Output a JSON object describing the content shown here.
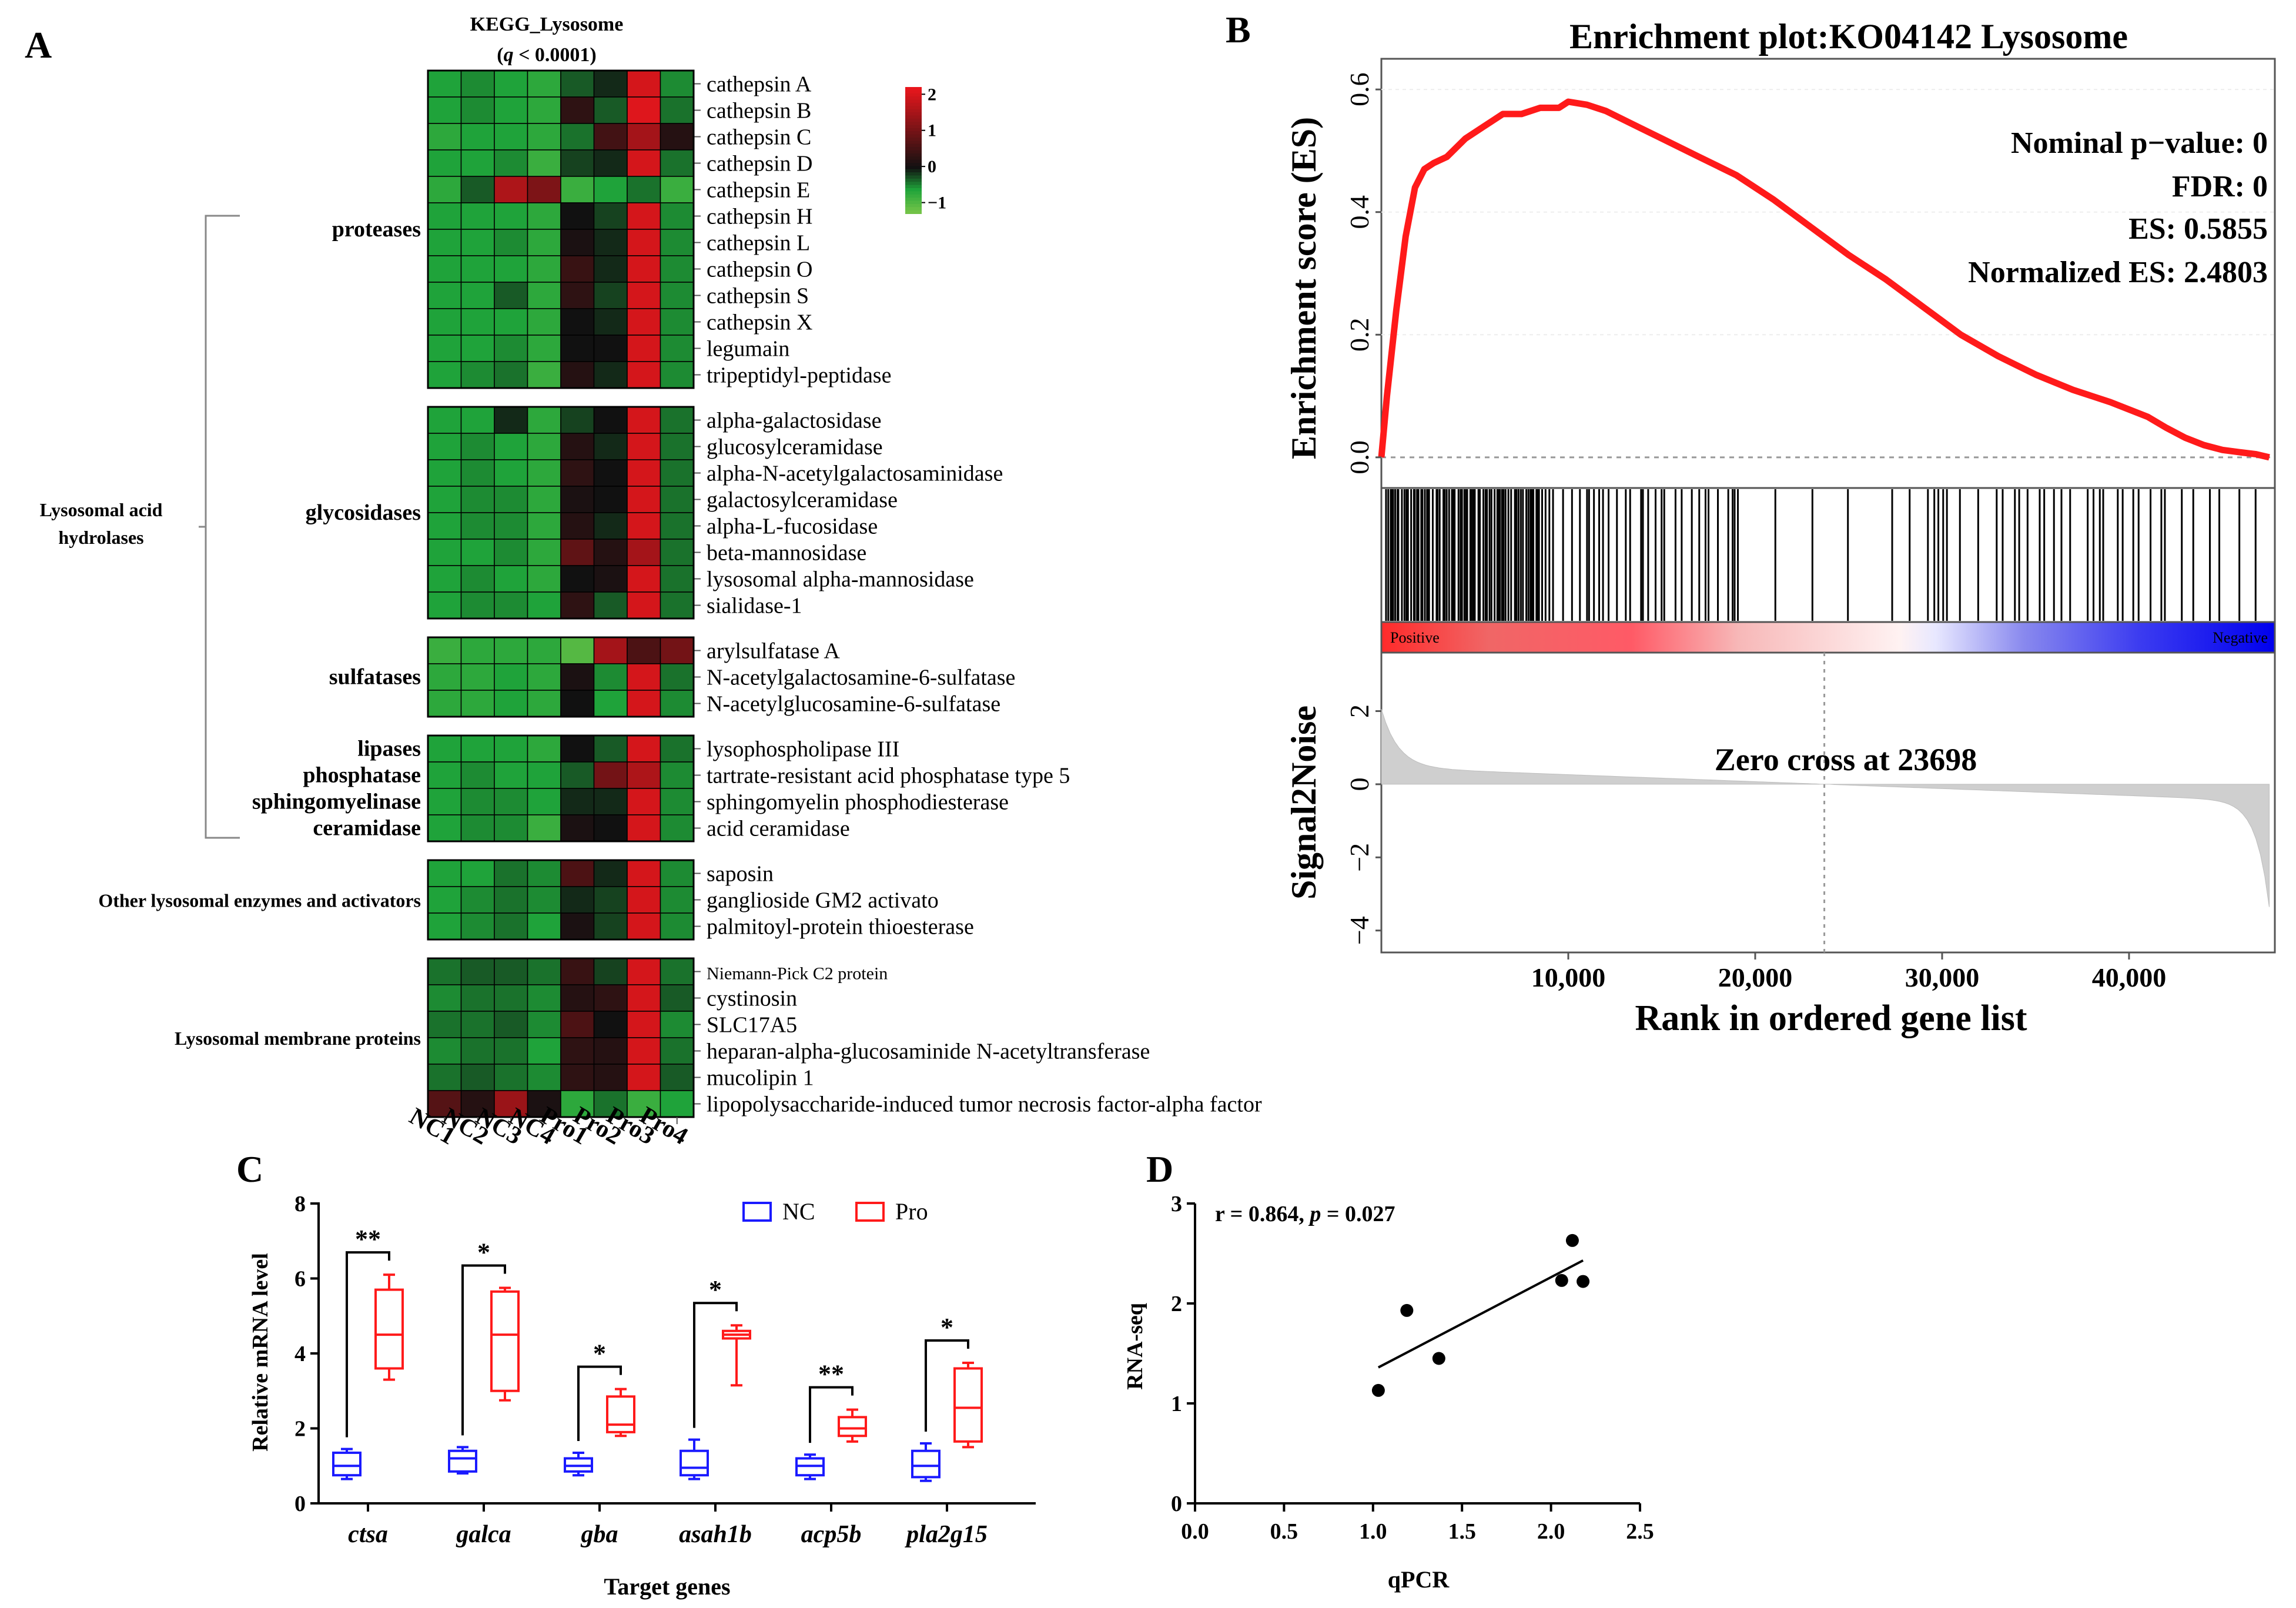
{
  "panels": {
    "a": "A",
    "b": "B",
    "c": "C",
    "d": "D"
  },
  "chart_data": [
    {
      "type": "heatmap",
      "panel": "A",
      "title": "KEGG_Lysosome",
      "subtitle_q": "q",
      "subtitle_rest": " < 0.0001)",
      "subtitle_open": "(",
      "samples": [
        "NC1",
        "NC2",
        "NC3",
        "NC4",
        "Pro1",
        "Pro2",
        "Pro3",
        "Pro4"
      ],
      "color_scale": {
        "ticks": [
          "2",
          "1",
          "0",
          "−1"
        ],
        "tick_values": [
          2,
          1,
          0,
          -1
        ],
        "range": [
          -1.3,
          2.2
        ],
        "colors": {
          "low": "#7ec84a",
          "lowmid": "#1fa33a",
          "mid": "#111111",
          "high": "#e8161c"
        }
      },
      "bracket_label": [
        "Lysosomal acid",
        "hydrolases"
      ],
      "groups": [
        {
          "labels": [
            "proteases"
          ],
          "genes": [
            {
              "name": "cathepsin A",
              "values": [
                -0.6,
                -0.5,
                -0.6,
                -0.7,
                -0.3,
                -0.1,
                2.0,
                -0.5
              ]
            },
            {
              "name": "cathepsin B",
              "values": [
                -0.6,
                -0.5,
                -0.6,
                -0.7,
                0.3,
                -0.3,
                2.1,
                -0.4
              ]
            },
            {
              "name": "cathepsin C",
              "values": [
                -0.7,
                -0.6,
                -0.6,
                -0.7,
                -0.4,
                0.5,
                1.5,
                0.2
              ]
            },
            {
              "name": "cathepsin D",
              "values": [
                -0.6,
                -0.6,
                -0.5,
                -0.8,
                -0.2,
                -0.1,
                2.0,
                -0.4
              ]
            },
            {
              "name": "cathepsin E",
              "values": [
                -0.7,
                -0.3,
                1.6,
                1.1,
                -0.8,
                -0.6,
                -0.4,
                -0.8
              ]
            },
            {
              "name": "cathepsin H",
              "values": [
                -0.6,
                -0.6,
                -0.6,
                -0.7,
                0.0,
                -0.2,
                2.0,
                -0.5
              ]
            },
            {
              "name": "cathepsin L",
              "values": [
                -0.6,
                -0.6,
                -0.5,
                -0.7,
                0.1,
                -0.1,
                2.0,
                -0.5
              ]
            },
            {
              "name": "cathepsin O",
              "values": [
                -0.6,
                -0.6,
                -0.6,
                -0.7,
                0.4,
                -0.1,
                2.0,
                -0.5
              ]
            },
            {
              "name": "cathepsin S",
              "values": [
                -0.6,
                -0.6,
                -0.3,
                -0.7,
                0.3,
                -0.2,
                2.0,
                -0.5
              ]
            },
            {
              "name": "cathepsin X",
              "values": [
                -0.6,
                -0.6,
                -0.6,
                -0.7,
                0.0,
                -0.1,
                2.0,
                -0.5
              ]
            },
            {
              "name": "legumain",
              "values": [
                -0.6,
                -0.6,
                -0.5,
                -0.7,
                0.0,
                0.0,
                2.0,
                -0.5
              ]
            },
            {
              "name": "tripeptidyl-peptidase",
              "values": [
                -0.6,
                -0.5,
                -0.4,
                -0.8,
                0.2,
                -0.1,
                2.0,
                -0.5
              ]
            }
          ]
        },
        {
          "labels": [
            "glycosidases"
          ],
          "genes": [
            {
              "name": "alpha-galactosidase",
              "values": [
                -0.6,
                -0.6,
                -0.1,
                -0.7,
                -0.2,
                0.0,
                2.0,
                -0.4
              ]
            },
            {
              "name": "glucosylceramidase",
              "values": [
                -0.6,
                -0.5,
                -0.6,
                -0.7,
                0.2,
                -0.1,
                2.0,
                -0.4
              ]
            },
            {
              "name": "alpha-N-acetylgalactosaminidase",
              "values": [
                -0.6,
                -0.5,
                -0.6,
                -0.7,
                0.3,
                0.0,
                2.0,
                -0.4
              ]
            },
            {
              "name": "galactosylceramidase",
              "values": [
                -0.6,
                -0.5,
                -0.5,
                -0.7,
                0.1,
                0.0,
                2.0,
                -0.4
              ]
            },
            {
              "name": "alpha-L-fucosidase",
              "values": [
                -0.6,
                -0.5,
                -0.5,
                -0.7,
                0.2,
                -0.1,
                2.0,
                -0.4
              ]
            },
            {
              "name": "beta-mannosidase",
              "values": [
                -0.6,
                -0.6,
                -0.5,
                -0.7,
                0.8,
                0.2,
                1.5,
                -0.4
              ]
            },
            {
              "name": "lysosomal alpha-mannosidase",
              "values": [
                -0.6,
                -0.5,
                -0.6,
                -0.7,
                0.0,
                0.1,
                2.0,
                -0.4
              ]
            },
            {
              "name": "sialidase-1",
              "values": [
                -0.6,
                -0.5,
                -0.5,
                -0.6,
                0.3,
                -0.3,
                2.0,
                -0.4
              ]
            }
          ]
        },
        {
          "labels": [
            "sulfatases"
          ],
          "genes": [
            {
              "name": "arylsulfatase A",
              "values": [
                -0.8,
                -0.7,
                -0.7,
                -0.7,
                -1.0,
                1.5,
                0.6,
                1.0
              ]
            },
            {
              "name": "N-acetylgalactosamine-6-sulfatase",
              "values": [
                -0.7,
                -0.7,
                -0.6,
                -0.7,
                0.1,
                -0.5,
                2.0,
                -0.4
              ]
            },
            {
              "name": "N-acetylglucosamine-6-sulfatase",
              "values": [
                -0.7,
                -0.7,
                -0.6,
                -0.7,
                0.0,
                -0.6,
                2.0,
                -0.5
              ]
            }
          ]
        },
        {
          "labels": [
            "lipases",
            "phosphatase",
            "sphingomyelinase",
            "ceramidase"
          ],
          "genes": [
            {
              "name": "lysophospholipase III",
              "values": [
                -0.6,
                -0.6,
                -0.6,
                -0.7,
                0.0,
                -0.3,
                2.0,
                -0.4
              ]
            },
            {
              "name": "tartrate-resistant acid phosphatase type 5",
              "values": [
                -0.6,
                -0.5,
                -0.6,
                -0.6,
                -0.3,
                1.0,
                1.6,
                -0.5
              ]
            },
            {
              "name": "sphingomyelin phosphodiesterase",
              "values": [
                -0.6,
                -0.5,
                -0.5,
                -0.6,
                -0.1,
                -0.1,
                2.0,
                -0.5
              ]
            },
            {
              "name": "acid ceramidase",
              "values": [
                -0.6,
                -0.5,
                -0.5,
                -0.8,
                0.1,
                0.0,
                2.0,
                -0.5
              ]
            }
          ]
        },
        {
          "labels": [
            "Other lysosomal enzymes and activators"
          ],
          "genes": [
            {
              "name": "saposin",
              "values": [
                -0.6,
                -0.6,
                -0.4,
                -0.5,
                0.6,
                -0.1,
                2.0,
                -0.5
              ]
            },
            {
              "name": "ganglioside GM2 activato",
              "values": [
                -0.6,
                -0.5,
                -0.4,
                -0.5,
                -0.1,
                -0.2,
                2.0,
                -0.5
              ]
            },
            {
              "name": "palmitoyl-protein thioesterase",
              "values": [
                -0.6,
                -0.5,
                -0.4,
                -0.6,
                0.1,
                -0.2,
                2.0,
                -0.5
              ]
            }
          ]
        },
        {
          "labels": [
            "Lysosomal membrane proteins"
          ],
          "genes": [
            {
              "name": "Niemann-Pick C2 protein",
              "small": true,
              "values": [
                -0.4,
                -0.3,
                -0.3,
                -0.4,
                0.4,
                -0.2,
                2.0,
                -0.4
              ]
            },
            {
              "name": "cystinosin",
              "values": [
                -0.5,
                -0.4,
                -0.4,
                -0.5,
                0.2,
                0.3,
                2.0,
                -0.3
              ]
            },
            {
              "name": "SLC17A5",
              "values": [
                -0.4,
                -0.4,
                -0.3,
                -0.5,
                0.6,
                0.0,
                2.0,
                -0.5
              ]
            },
            {
              "name": "heparan-alpha-glucosaminide N-acetyltransferase",
              "values": [
                -0.5,
                -0.4,
                -0.4,
                -0.6,
                0.3,
                0.2,
                2.0,
                -0.4
              ]
            },
            {
              "name": "mucolipin 1",
              "values": [
                -0.4,
                -0.3,
                -0.4,
                -0.5,
                0.3,
                0.2,
                2.0,
                -0.3
              ]
            },
            {
              "name": "lipopolysaccharide-induced tumor necrosis factor-alpha factor",
              "values": [
                0.7,
                0.2,
                1.4,
                0.1,
                -0.7,
                -0.4,
                -0.8,
                -0.6
              ]
            }
          ]
        }
      ]
    },
    {
      "type": "line",
      "panel": "B",
      "title": "Enrichment plot:KO04142 Lysosome",
      "ylabel": "Enrichment score (ES)",
      "xlabel": "Rank in ordered gene list",
      "ylim": [
        -0.05,
        0.65
      ],
      "yticks": [
        0.0,
        0.2,
        0.4,
        0.6
      ],
      "ytick_labels": [
        "0.0",
        "0.2",
        "0.4",
        "0.6"
      ],
      "xlim": [
        0,
        47800
      ],
      "xticks": [
        10000,
        20000,
        30000,
        40000
      ],
      "xtick_labels": [
        "10,000",
        "20,000",
        "30,000",
        "40,000"
      ],
      "es_curve": {
        "x": [
          0,
          300,
          800,
          1300,
          1800,
          2300,
          2800,
          3500,
          4500,
          5500,
          6500,
          7500,
          8500,
          9500,
          10000,
          11000,
          12000,
          13000,
          15000,
          17000,
          19000,
          21000,
          23000,
          25000,
          27000,
          29000,
          31000,
          33000,
          35000,
          37000,
          39000,
          40000,
          41000,
          42000,
          43000,
          44000,
          45000,
          46000,
          46800,
          47500
        ],
        "y": [
          0.0,
          0.1,
          0.24,
          0.36,
          0.44,
          0.47,
          0.48,
          0.49,
          0.52,
          0.54,
          0.56,
          0.56,
          0.57,
          0.57,
          0.58,
          0.575,
          0.565,
          0.55,
          0.52,
          0.49,
          0.46,
          0.42,
          0.375,
          0.33,
          0.29,
          0.245,
          0.2,
          0.165,
          0.135,
          0.11,
          0.09,
          0.078,
          0.066,
          0.048,
          0.032,
          0.02,
          0.012,
          0.008,
          0.005,
          0.0
        ]
      },
      "stats": {
        "nominal_p": "Nominal p−value: 0",
        "fdr": "FDR: 0",
        "es": "ES: 0.5855",
        "nes": "Normalized ES: 2.4803"
      },
      "ranking_labels": {
        "positive": "Positive",
        "negative": "Negative"
      },
      "metric": {
        "ylabel": "Signal2Noise",
        "ylim": [
          -4.6,
          3.6
        ],
        "yticks": [
          2,
          0,
          -2,
          -4
        ],
        "ytick_labels": [
          "2",
          "0",
          "−2",
          "−4"
        ],
        "zero_cross_label": "Zero cross at 23698",
        "zero_cross_rank": 23698
      }
    },
    {
      "type": "box",
      "panel": "C",
      "ylabel": "Relative mRNA level",
      "xlabel": "Target genes",
      "ylim": [
        0,
        8
      ],
      "yticks": [
        0,
        2,
        4,
        6,
        8
      ],
      "ytick_labels": [
        "0",
        "2",
        "4",
        "6",
        "8"
      ],
      "categories": [
        "ctsa",
        "galca",
        "gba",
        "asah1b",
        "acp5b",
        "pla2g15"
      ],
      "significance": [
        "**",
        "*",
        "*",
        "*",
        "**",
        "*"
      ],
      "legend": [
        {
          "name": "NC",
          "color": "#1a1aff"
        },
        {
          "name": "Pro",
          "color": "#ff1a1a"
        }
      ],
      "series": [
        {
          "name": "NC",
          "color": "#1a1aff",
          "boxes": [
            {
              "min": 0.65,
              "q1": 0.75,
              "median": 1.0,
              "q3": 1.35,
              "max": 1.45
            },
            {
              "min": 0.8,
              "q1": 0.85,
              "median": 1.2,
              "q3": 1.4,
              "max": 1.5
            },
            {
              "min": 0.75,
              "q1": 0.85,
              "median": 1.0,
              "q3": 1.2,
              "max": 1.35
            },
            {
              "min": 0.65,
              "q1": 0.75,
              "median": 0.95,
              "q3": 1.4,
              "max": 1.7
            },
            {
              "min": 0.65,
              "q1": 0.75,
              "median": 1.0,
              "q3": 1.2,
              "max": 1.3
            },
            {
              "min": 0.6,
              "q1": 0.7,
              "median": 1.0,
              "q3": 1.4,
              "max": 1.6
            }
          ]
        },
        {
          "name": "Pro",
          "color": "#ff1a1a",
          "boxes": [
            {
              "min": 3.3,
              "q1": 3.6,
              "median": 4.5,
              "q3": 5.7,
              "max": 6.1
            },
            {
              "min": 2.75,
              "q1": 3.0,
              "median": 4.5,
              "q3": 5.65,
              "max": 5.75
            },
            {
              "min": 1.8,
              "q1": 1.9,
              "median": 2.1,
              "q3": 2.85,
              "max": 3.05
            },
            {
              "min": 3.15,
              "q1": 4.4,
              "median": 4.5,
              "q3": 4.6,
              "max": 4.75
            },
            {
              "min": 1.65,
              "q1": 1.8,
              "median": 2.0,
              "q3": 2.3,
              "max": 2.5
            },
            {
              "min": 1.5,
              "q1": 1.65,
              "median": 2.55,
              "q3": 3.6,
              "max": 3.75
            }
          ]
        }
      ]
    },
    {
      "type": "scatter",
      "panel": "D",
      "xlabel": "qPCR",
      "ylabel": "RNA-seq",
      "xlim": [
        0,
        2.5
      ],
      "ylim": [
        0,
        3
      ],
      "xticks": [
        0.0,
        0.5,
        1.0,
        1.5,
        2.0,
        2.5
      ],
      "xtick_labels": [
        "0.0",
        "0.5",
        "1.0",
        "1.5",
        "2.0",
        "2.5"
      ],
      "yticks": [
        0,
        1,
        2,
        3
      ],
      "ytick_labels": [
        "0",
        "1",
        "2",
        "3"
      ],
      "annotation_r": "r = 0.864, ",
      "annotation_p_symbol": "p",
      "annotation_p_value": " = 0.027",
      "points": [
        {
          "x": 1.03,
          "y": 1.13
        },
        {
          "x": 1.19,
          "y": 1.93
        },
        {
          "x": 1.37,
          "y": 1.45
        },
        {
          "x": 2.06,
          "y": 2.23
        },
        {
          "x": 2.12,
          "y": 2.63
        },
        {
          "x": 2.18,
          "y": 2.22
        }
      ],
      "fit_line": {
        "x": [
          1.03,
          2.18
        ],
        "y": [
          1.36,
          2.43
        ]
      }
    }
  ]
}
